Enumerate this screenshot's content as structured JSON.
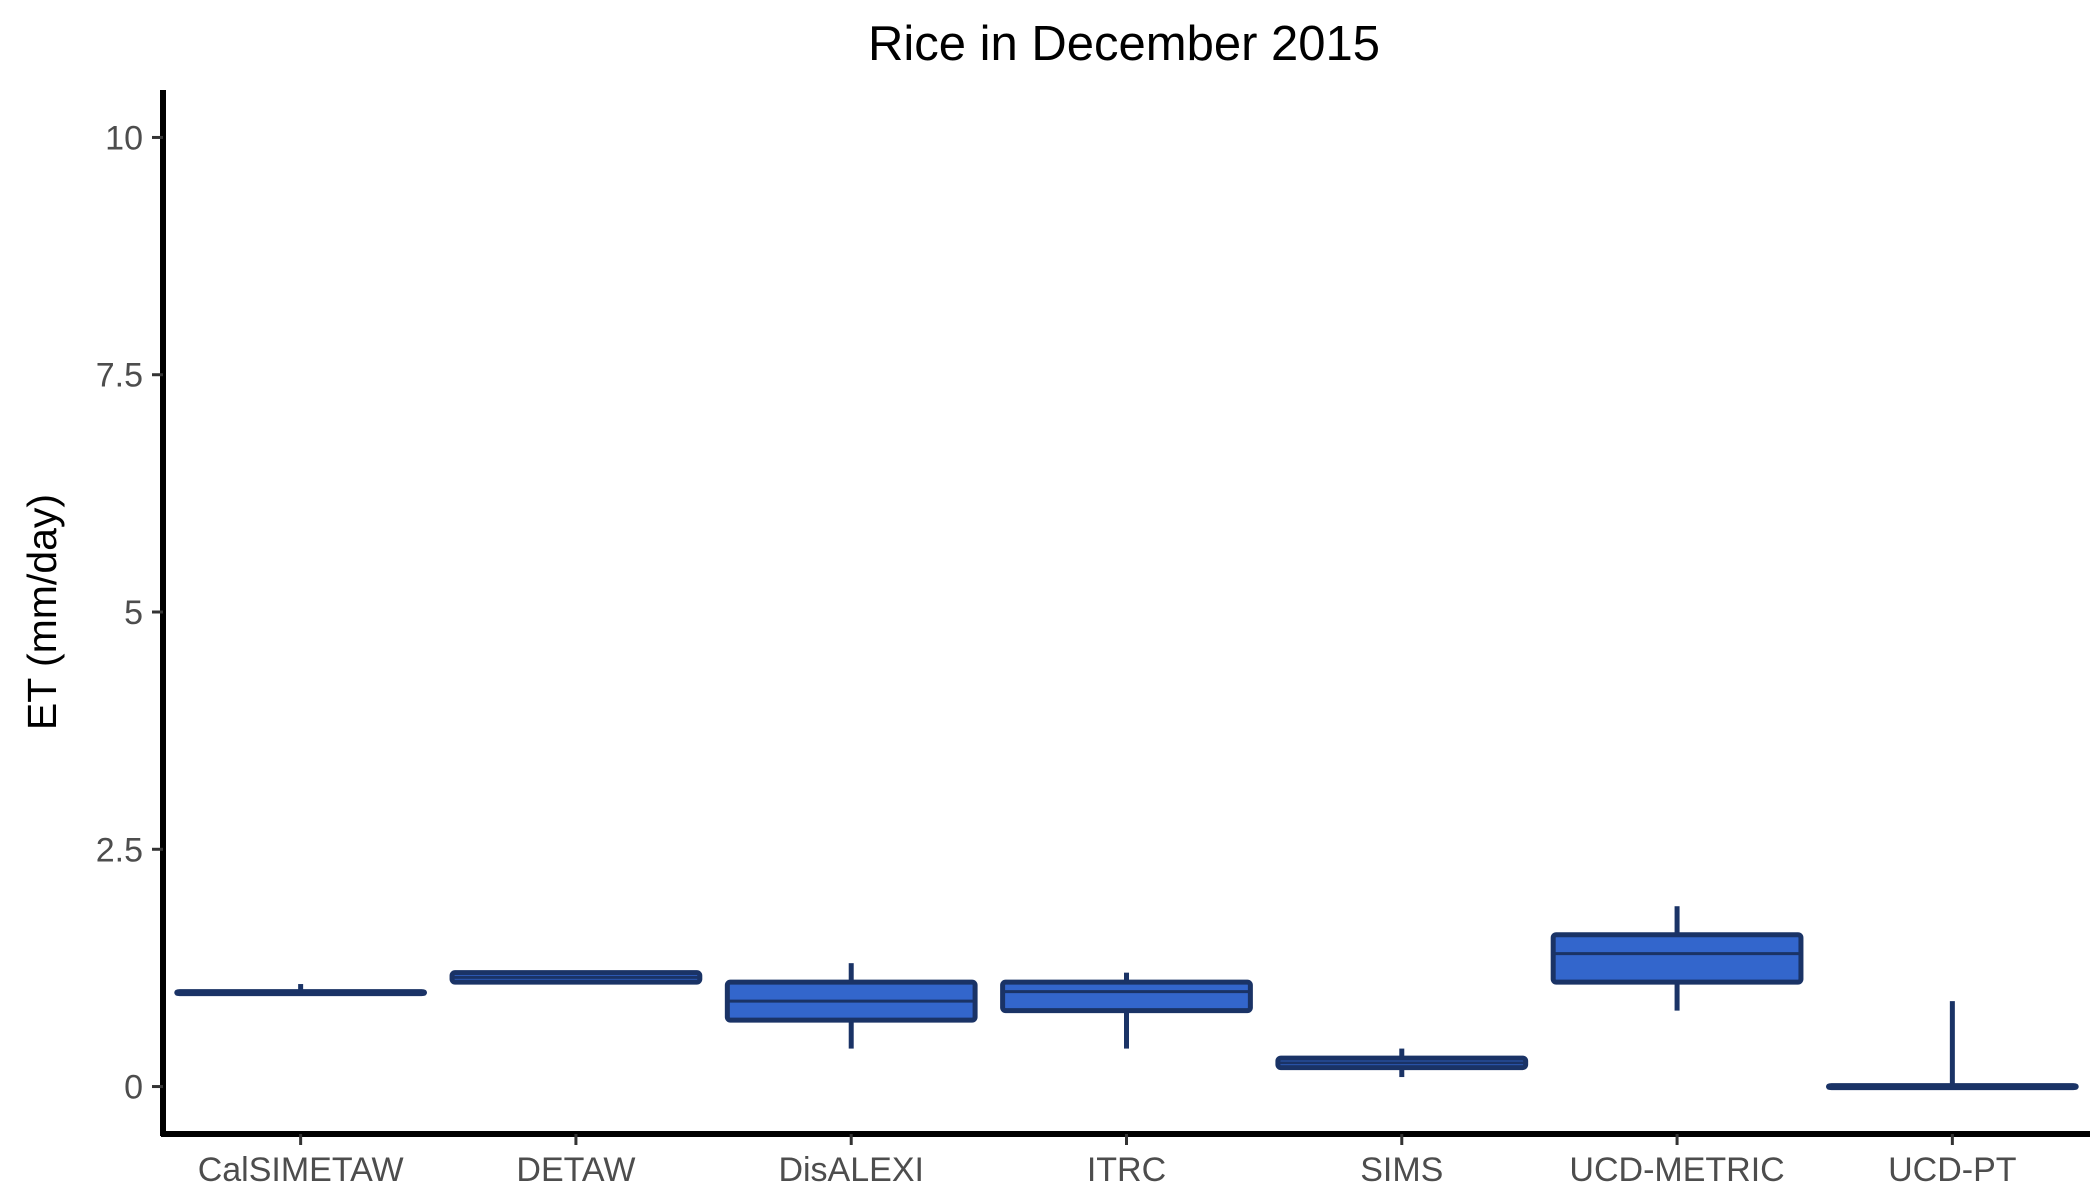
{
  "chart_data": {
    "type": "box",
    "title": "Rice in December 2015",
    "xlabel": "",
    "ylabel": "ET (mm/day)",
    "ylim": [
      -0.5,
      10.5
    ],
    "yticks": [
      0,
      2.5,
      5,
      7.5,
      10
    ],
    "ytick_labels": [
      "0",
      "2.5",
      "5",
      "7.5",
      "10"
    ],
    "grid": false,
    "legend": "none",
    "fill_color": "#3366cc",
    "line_color": "#1a3366",
    "categories": [
      "CalSIMETAW",
      "DETAW",
      "DisALEXI",
      "ITRC",
      "SIMS",
      "UCD-METRIC",
      "UCD-PT"
    ],
    "boxes": [
      {
        "min": 0.98,
        "q1": 0.98,
        "median": 0.99,
        "q3": 1.0,
        "max": 1.08
      },
      {
        "min": 1.1,
        "q1": 1.1,
        "median": 1.15,
        "q3": 1.2,
        "max": 1.2
      },
      {
        "min": 0.4,
        "q1": 0.7,
        "median": 0.9,
        "q3": 1.1,
        "max": 1.3
      },
      {
        "min": 0.4,
        "q1": 0.8,
        "median": 1.0,
        "q3": 1.1,
        "max": 1.2
      },
      {
        "min": 0.1,
        "q1": 0.2,
        "median": 0.25,
        "q3": 0.3,
        "max": 0.4
      },
      {
        "min": 0.8,
        "q1": 1.1,
        "median": 1.4,
        "q3": 1.6,
        "max": 1.9
      },
      {
        "min": 0.0,
        "q1": 0.0,
        "median": 0.0,
        "q3": 0.01,
        "max": 0.9
      }
    ]
  }
}
